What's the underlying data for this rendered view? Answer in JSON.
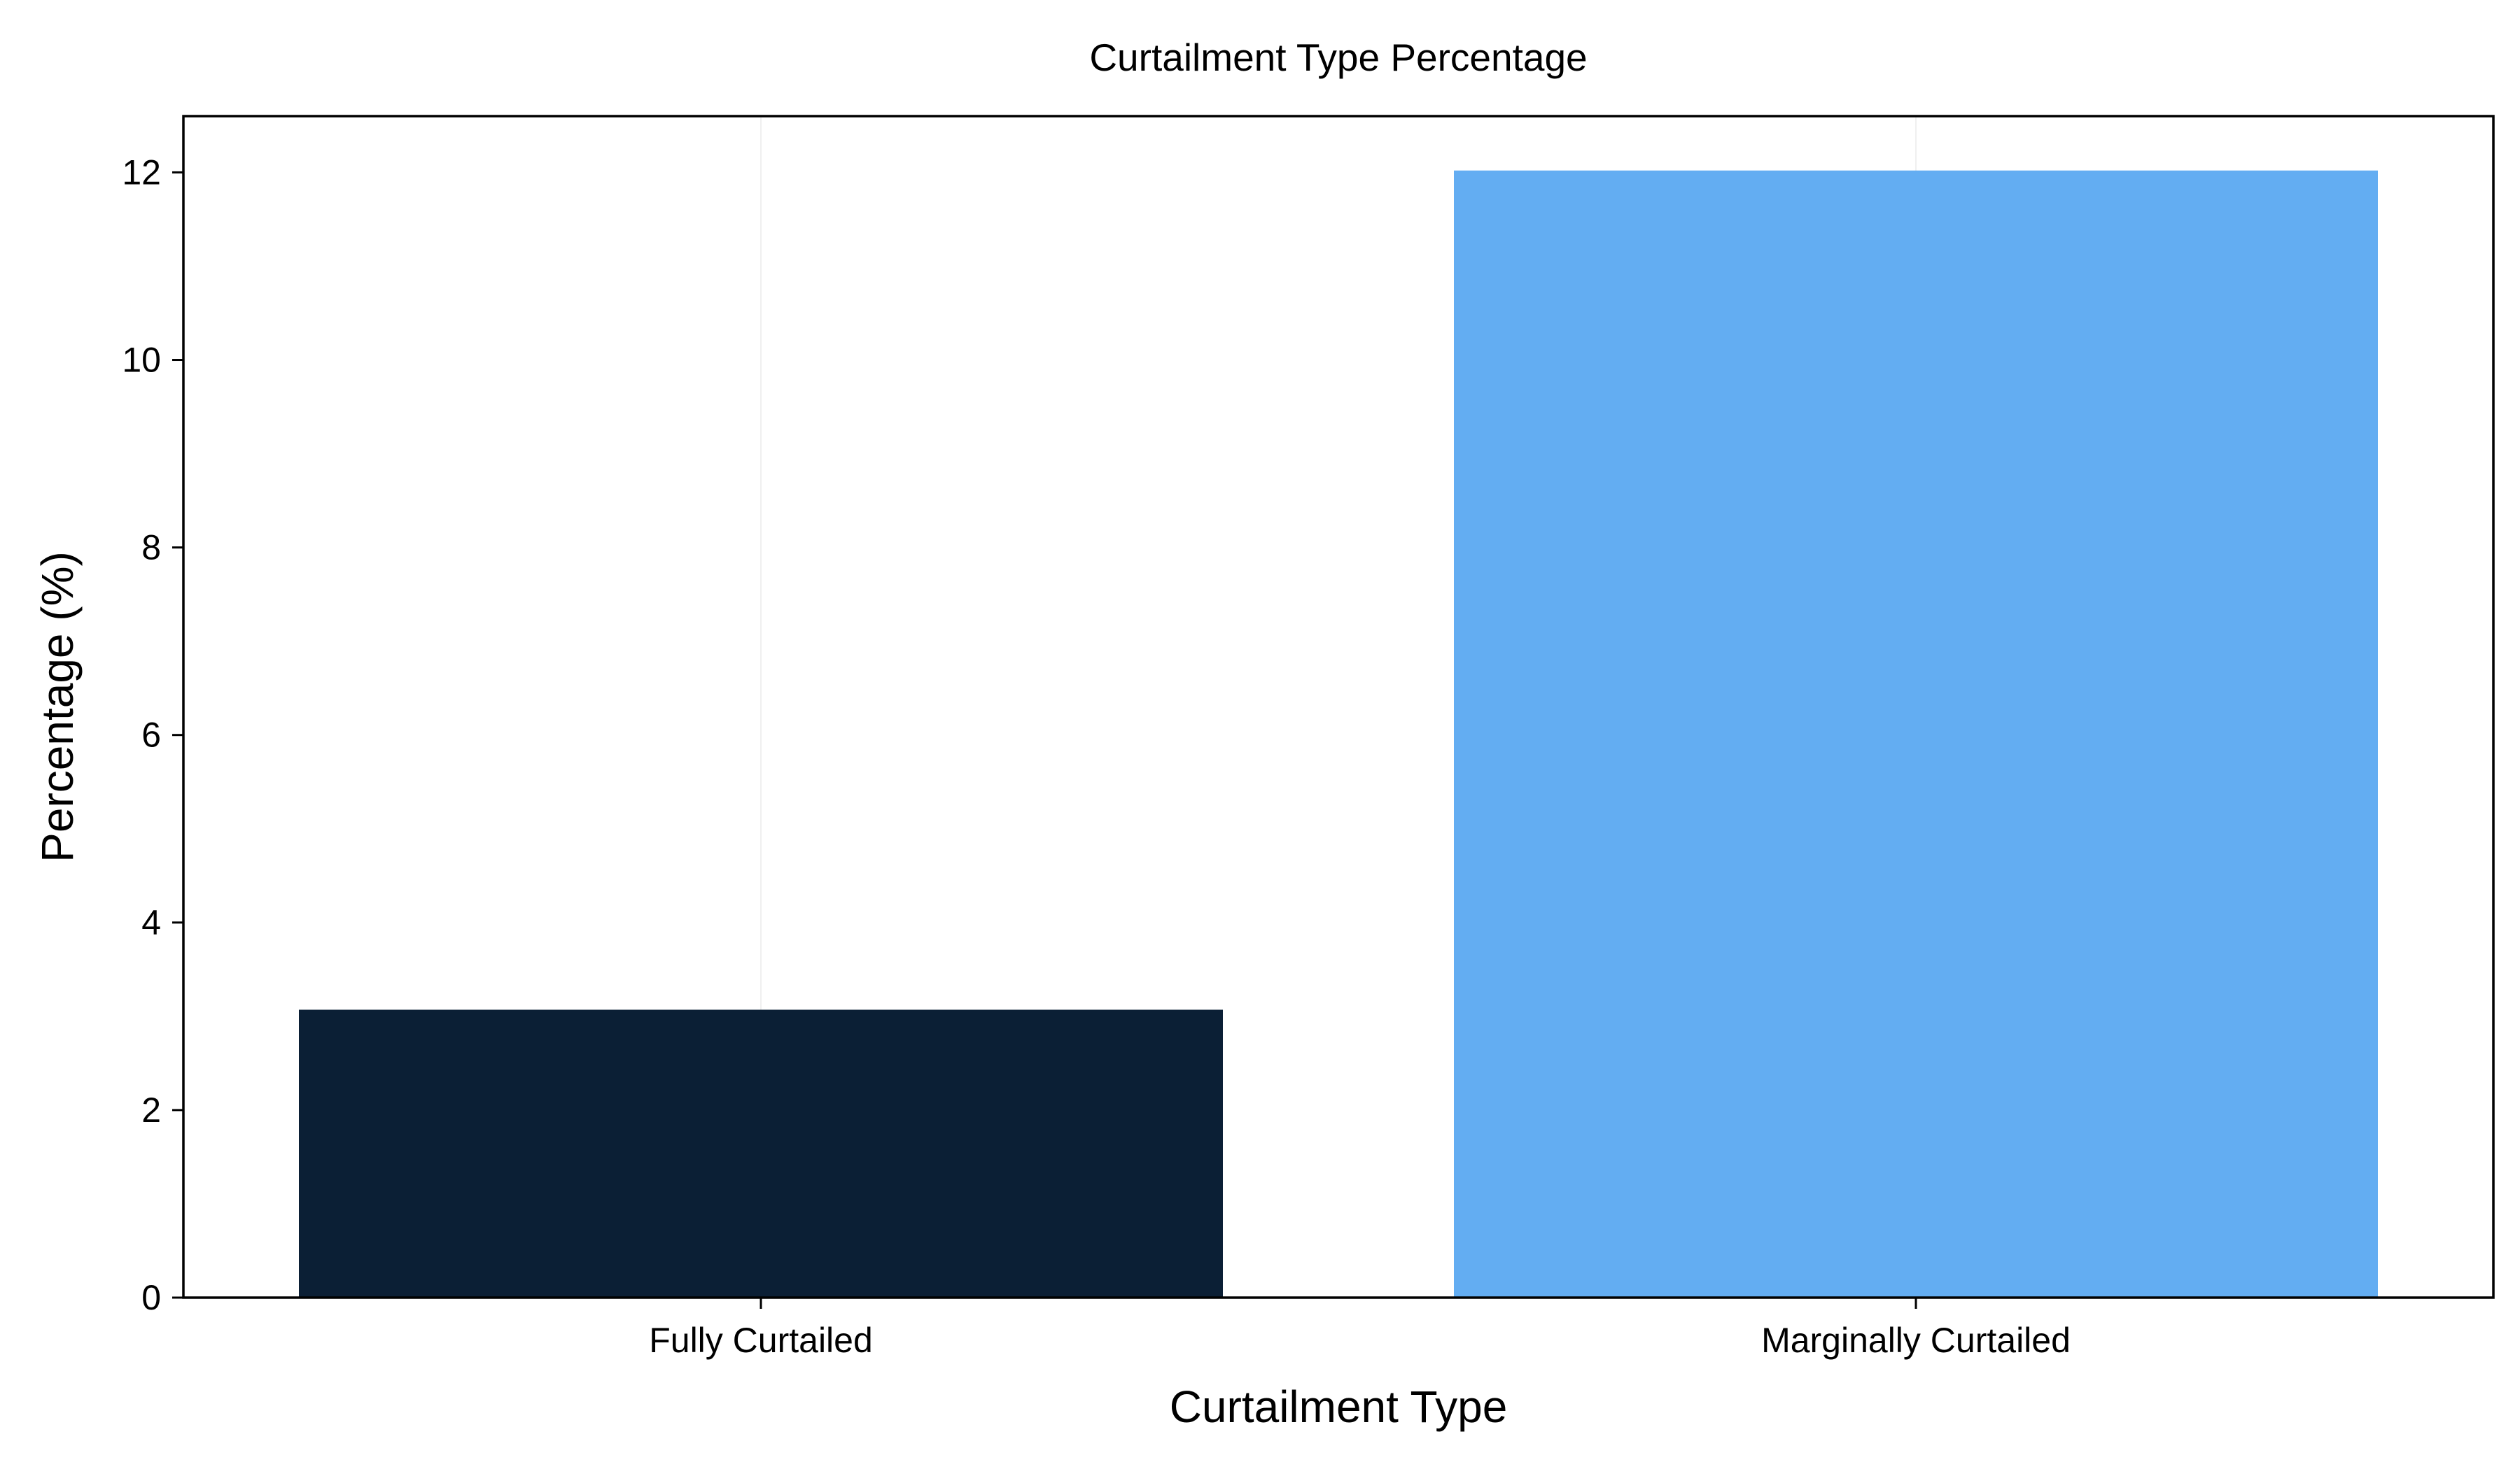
{
  "chart_data": {
    "type": "bar",
    "title": "Curtailment Type Percentage",
    "xlabel": "Curtailment Type",
    "ylabel": "Percentage (%)",
    "categories": [
      "Fully Curtailed",
      "Marginally Curtailed"
    ],
    "values": [
      3.07,
      12.02
    ],
    "colors": [
      "#0b1f35",
      "#63adf2"
    ],
    "ylim": [
      0,
      12.6
    ],
    "yticks": [
      0,
      2,
      4,
      6,
      8,
      10,
      12
    ],
    "ytick_labels": [
      "0",
      "2",
      "4",
      "6",
      "8",
      "10",
      "12"
    ],
    "grid": true,
    "legend": "none"
  }
}
